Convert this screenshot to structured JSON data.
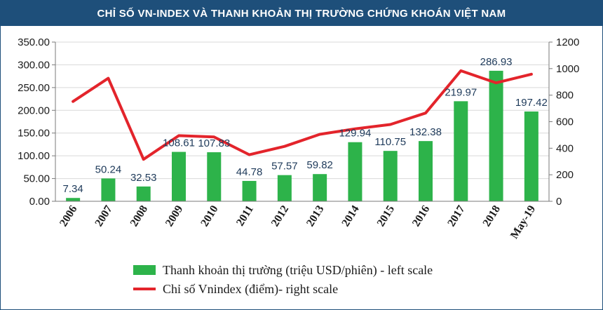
{
  "header": {
    "title": "CHỈ SỐ VN-INDEX VÀ THANH KHOẢN THỊ TRƯỜNG CHỨNG KHOÁN VIỆT NAM"
  },
  "chart_data": {
    "type": "bar",
    "title": "CHỈ SỐ VN-INDEX VÀ THANH KHOẢN THỊ TRƯỜNG CHỨNG KHOÁN VIỆT NAM",
    "categories": [
      "2006",
      "2007",
      "2008",
      "2009",
      "2010",
      "2011",
      "2012",
      "2013",
      "2014",
      "2015",
      "2016",
      "2017",
      "2018",
      "May-19"
    ],
    "series": [
      {
        "name": "Thanh khoản thị trường (triệu USD/phiên) - left scale",
        "type": "bar",
        "axis": "left",
        "color": "#2db34a",
        "values": [
          7.34,
          50.24,
          32.53,
          108.61,
          107.83,
          44.78,
          57.57,
          59.82,
          129.94,
          110.75,
          132.38,
          219.97,
          286.93,
          197.42
        ],
        "labels": [
          "7.34",
          "50.24",
          "32.53",
          "108.61",
          "107.83",
          "44.78",
          "57.57",
          "59.82",
          "129.94",
          "110.75",
          "132.38",
          "219.97",
          "286.93",
          "197.42"
        ]
      },
      {
        "name": "Chỉ số Vnindex (điểm)- right scale",
        "type": "line",
        "axis": "right",
        "color": "#e3242b",
        "values": [
          752,
          927,
          316,
          495,
          485,
          351,
          414,
          505,
          546,
          579,
          665,
          984,
          893,
          958
        ]
      }
    ],
    "y_left": {
      "ylim": [
        0,
        350
      ],
      "ticks": [
        "0.00",
        "50.00",
        "100.00",
        "150.00",
        "200.00",
        "250.00",
        "300.00",
        "350.00"
      ]
    },
    "y_right": {
      "ylim": [
        0,
        1200
      ],
      "ticks": [
        "0",
        "200",
        "400",
        "600",
        "800",
        "1000",
        "1200"
      ]
    },
    "grid": "horizontal",
    "legend_position": "bottom"
  }
}
